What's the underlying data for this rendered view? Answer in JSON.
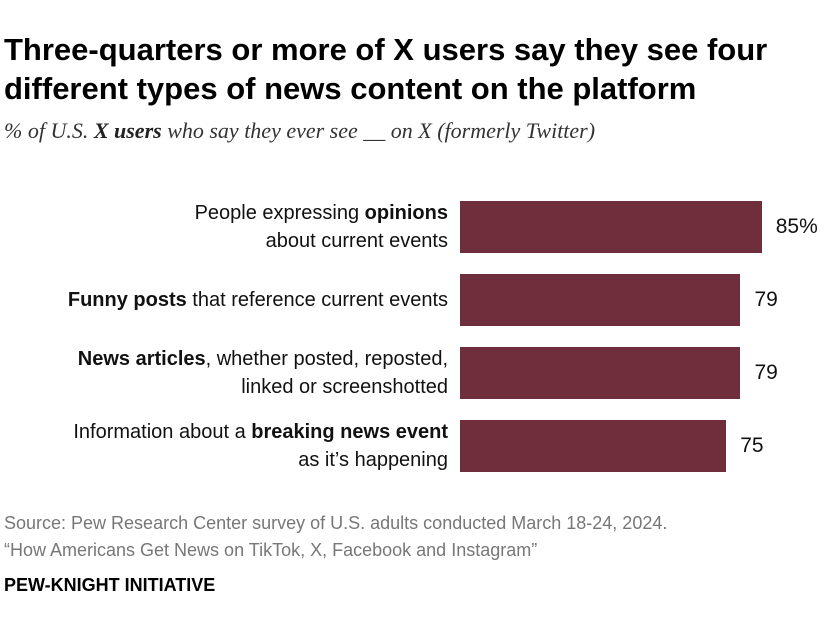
{
  "header": {
    "title": "Three-quarters or more of X users say they see four different types of news content on the platform",
    "subtitle_pre": "% of U.S. ",
    "subtitle_bold": "X users",
    "subtitle_post": " who say they ever see __ on X (formerly Twitter)"
  },
  "footer": {
    "source_line1": "Source: Pew Research Center survey of U.S. adults conducted March 18-24, 2024.",
    "source_line2": "“How Americans Get News on TikTok, X, Facebook and Instagram”",
    "brand": "PEW-KNIGHT INITIATIVE"
  },
  "colors": {
    "bar": "#6e2e3b"
  },
  "chart_data": {
    "type": "bar",
    "orientation": "horizontal",
    "title": "Three-quarters or more of X users say they see four different types of news content on the platform",
    "categories": [
      "People expressing opinions about current events",
      "Funny posts that reference current events",
      "News articles, whether posted, reposted, linked or screenshotted",
      "Information about a breaking news event as it’s happening"
    ],
    "values": [
      85,
      79,
      79,
      75
    ],
    "value_labels": [
      "85%",
      "79",
      "79",
      "75"
    ],
    "label_lines": [
      [
        [
          {
            "t": "People expressing ",
            "b": false
          },
          {
            "t": "opinions",
            "b": true
          }
        ],
        [
          {
            "t": "about current events",
            "b": false
          }
        ]
      ],
      [
        [
          {
            "t": "Funny posts",
            "b": true
          },
          {
            "t": " that reference current events",
            "b": false
          }
        ]
      ],
      [
        [
          {
            "t": "News articles",
            "b": true
          },
          {
            "t": ", whether posted, reposted,",
            "b": false
          }
        ],
        [
          {
            "t": "linked or screenshotted",
            "b": false
          }
        ]
      ],
      [
        [
          {
            "t": "Information about a ",
            "b": false
          },
          {
            "t": "breaking news event",
            "b": true
          }
        ],
        [
          {
            "t": "as it’s happening",
            "b": false
          }
        ]
      ]
    ],
    "xlim": [
      0,
      100
    ],
    "xlabel": "",
    "ylabel": "",
    "grid": false,
    "legend": "none"
  }
}
